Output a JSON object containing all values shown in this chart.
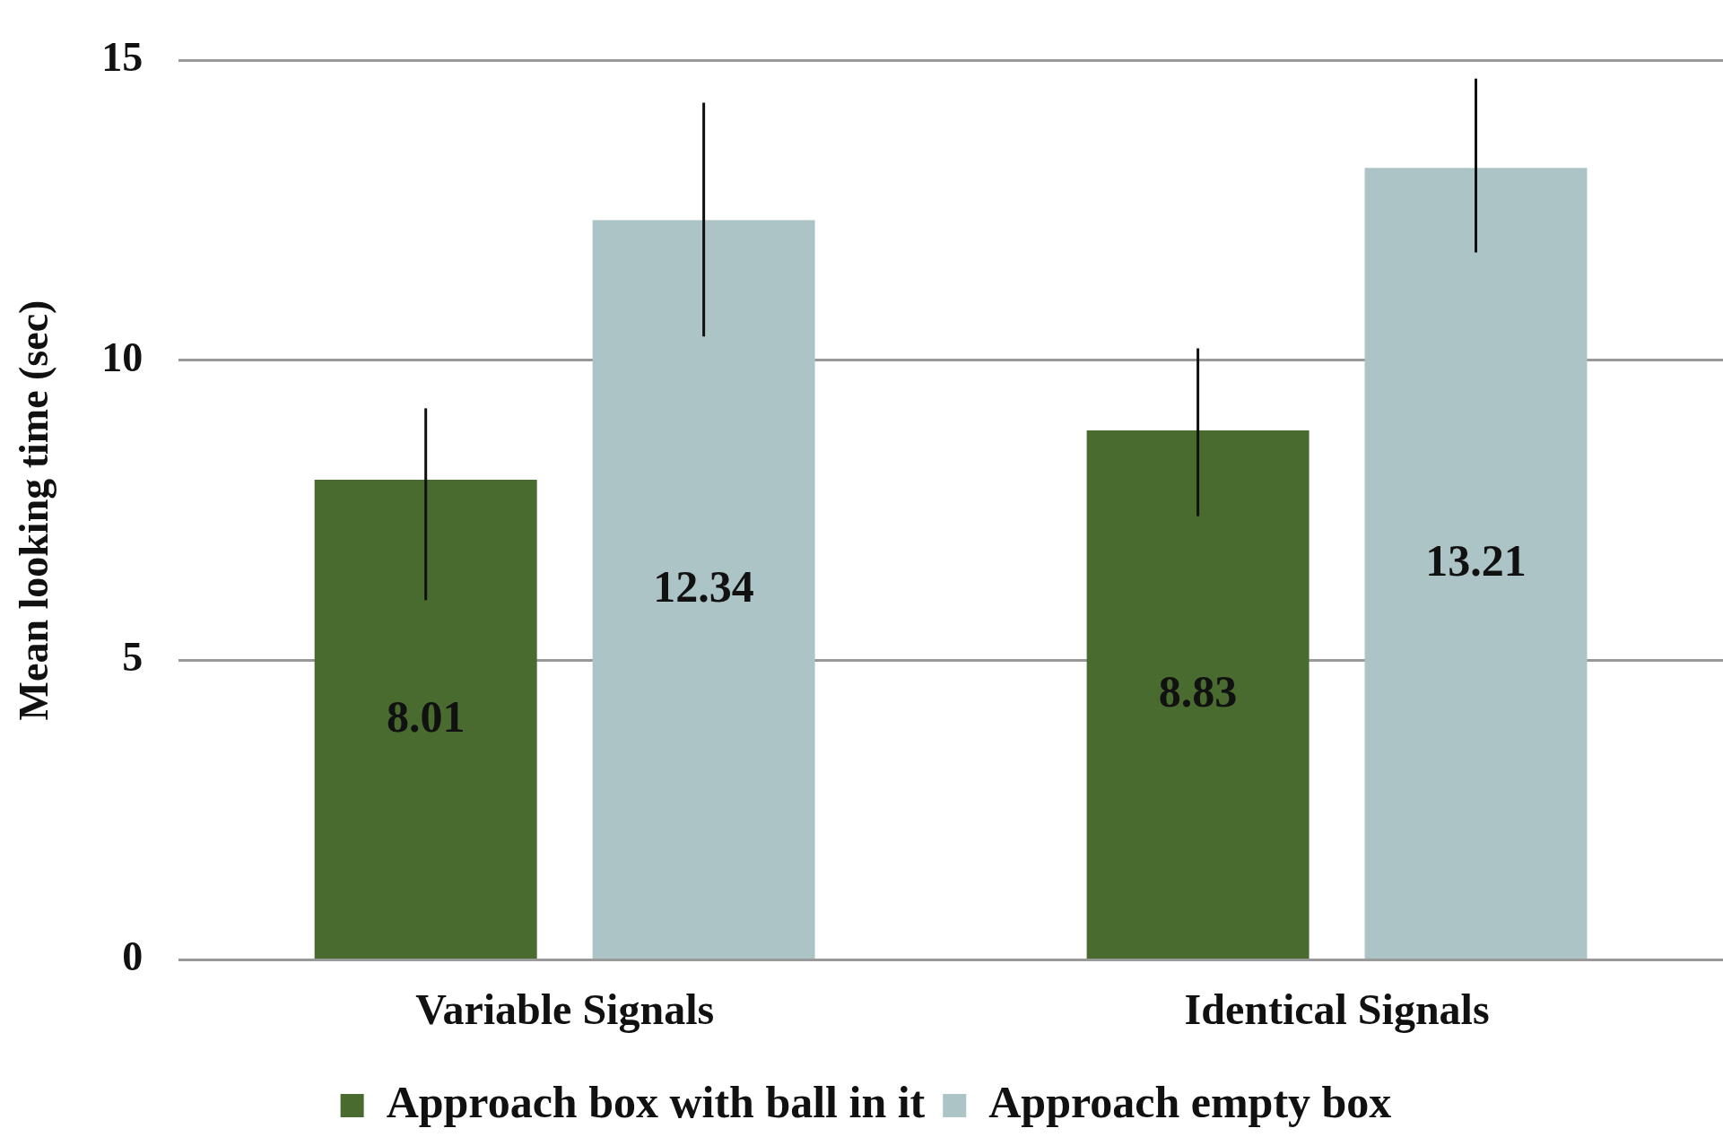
{
  "chart_data": {
    "type": "bar",
    "ylabel": "Mean looking time (sec)",
    "categories": [
      "Variable Signals",
      "Identical Signals"
    ],
    "series": [
      {
        "name": "Approach box with ball in it",
        "color": "#4a6b30",
        "values": [
          8.01,
          8.83
        ],
        "errors": [
          [
            6.0,
            9.2
          ],
          [
            7.4,
            10.2
          ]
        ]
      },
      {
        "name": "Approach empty box",
        "color": "#adc4c6",
        "values": [
          12.34,
          13.21
        ],
        "errors": [
          [
            10.4,
            14.3
          ],
          [
            11.8,
            14.7
          ]
        ]
      }
    ],
    "ylim": [
      0,
      15
    ],
    "yticks": [
      0,
      5,
      10,
      15
    ],
    "grid": "y",
    "legend": "bottom",
    "data_labels": true
  }
}
